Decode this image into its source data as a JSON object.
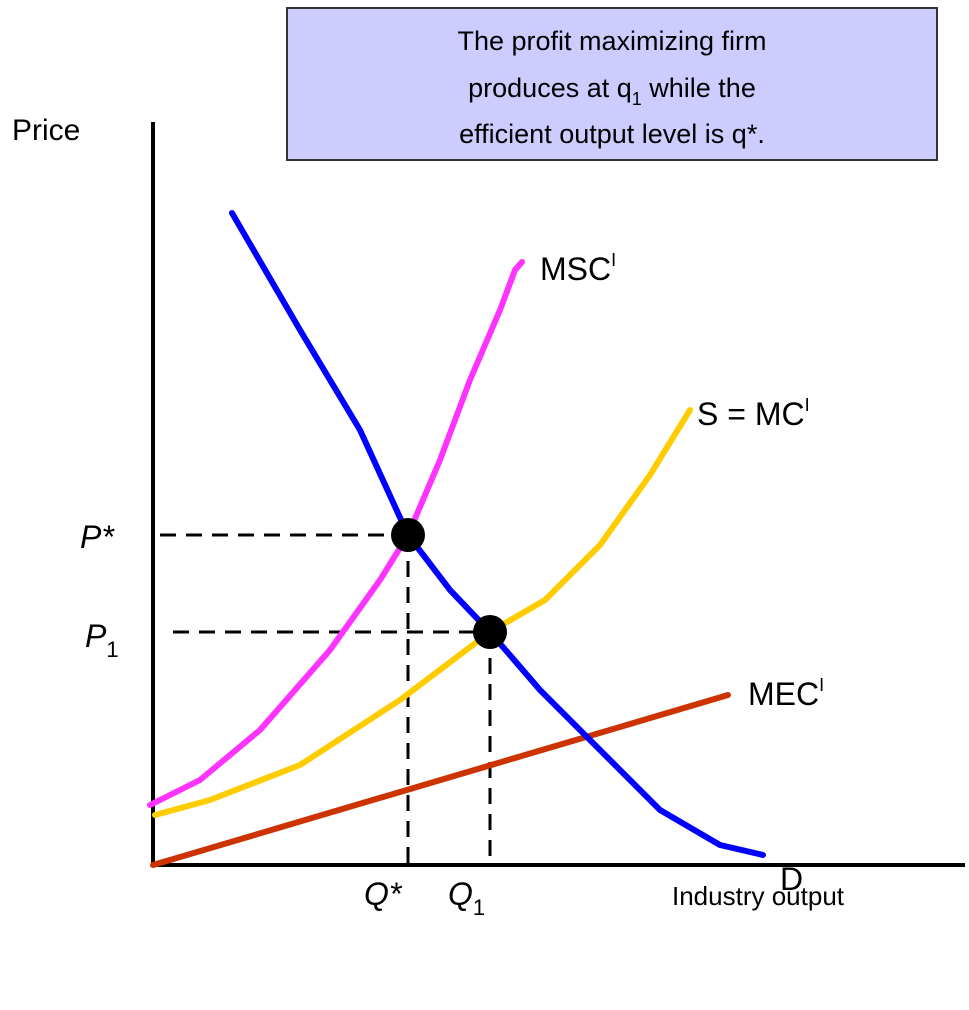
{
  "annotation": {
    "line1": "The profit maximizing firm",
    "line2_pre": "produces at q",
    "line2_sub": "1",
    "line2_post": " while the",
    "line3": "efficient output level is q*."
  },
  "axes": {
    "y_label": "Price",
    "x_label": "Industry output"
  },
  "curves": {
    "msc": {
      "text": "MSC",
      "sup": "I"
    },
    "supply": {
      "text": "S = MC",
      "sup": "I"
    },
    "mec": {
      "text": "MEC",
      "sup": "I"
    },
    "demand": {
      "text": "D"
    }
  },
  "points": {
    "p_star": {
      "text": "P*"
    },
    "p1": {
      "text": "P",
      "sub": "1"
    },
    "q_star": {
      "text": "Q*"
    },
    "q1": {
      "text": "Q",
      "sub": "1"
    }
  }
}
